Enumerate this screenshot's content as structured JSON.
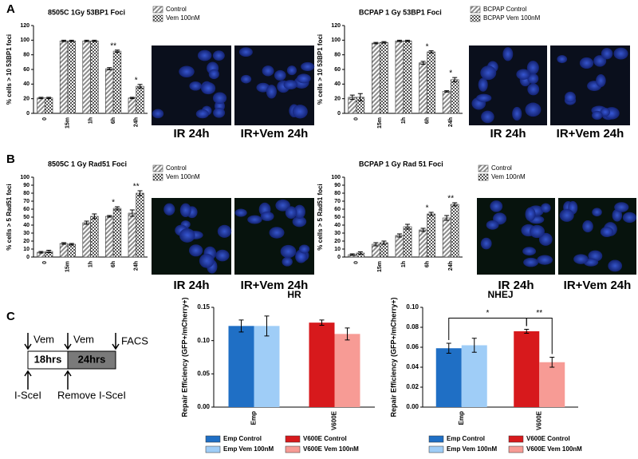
{
  "panel_letters": [
    "A",
    "B",
    "C"
  ],
  "image_captions": [
    "IR 24h",
    "IR+Vem 24h",
    "IR 24h",
    "IR+Vem 24h",
    "IR 24h",
    "IR+Vem 24h",
    "IR 24h",
    "IR+Vem 24h"
  ],
  "diagram": {
    "vem_1": "Vem",
    "vem_2": "Vem",
    "facs": "FACS",
    "phase_1": "18hrs",
    "phase_2": "24hrs",
    "start": "I-SceI",
    "remove": "Remove I-SceI"
  },
  "chart_data": [
    {
      "type": "bar",
      "title": "8505C 1Gy 53BP1 Foci",
      "y_label": "% cells > 10  53BP1 foci",
      "categories": [
        "0",
        "15m",
        "1h",
        "6h",
        "24h"
      ],
      "series": [
        {
          "name": "Control",
          "color": "#8c8c8c",
          "pattern": "stripes",
          "values": [
            21,
            99,
            99,
            61,
            21
          ],
          "errors": [
            1,
            1,
            1,
            1.5,
            1
          ]
        },
        {
          "name": "Vem 100nM",
          "color": "#555555",
          "pattern": "checks",
          "values": [
            21,
            99,
            99,
            85,
            37
          ],
          "errors": [
            1,
            1,
            1,
            1.5,
            2.5
          ]
        }
      ],
      "annotations": [
        null,
        null,
        null,
        "**",
        "*"
      ],
      "ylim": [
        0,
        120
      ],
      "yticks": [
        0,
        20,
        40,
        60,
        80,
        100,
        120
      ]
    },
    {
      "type": "bar",
      "title": "BCPAP 1 Gy 53BP1 Foci",
      "y_label": "% cells > 10  53BP1 foci",
      "categories": [
        "0",
        "15m",
        "1h",
        "6h",
        "24h"
      ],
      "series": [
        {
          "name": "BCPAP Control",
          "color": "#8c8c8c",
          "pattern": "stripes",
          "values": [
            22,
            96,
            99,
            69,
            30
          ],
          "errors": [
            3,
            1,
            1,
            2,
            1
          ]
        },
        {
          "name": "BCPAP Vem 100nM",
          "color": "#555555",
          "pattern": "checks",
          "values": [
            22,
            97,
            99,
            84,
            46
          ],
          "errors": [
            5,
            1,
            1,
            1.5,
            3
          ]
        }
      ],
      "annotations": [
        null,
        null,
        null,
        "*",
        "*"
      ],
      "ylim": [
        0,
        120
      ],
      "yticks": [
        0,
        20,
        40,
        60,
        80,
        100,
        120
      ]
    },
    {
      "type": "bar",
      "title": "8505C 1 Gy Rad51 Foci",
      "y_label": "% cells > 5 Rad51 foci",
      "categories": [
        "0",
        "15m",
        "1h",
        "6h",
        "24h"
      ],
      "series": [
        {
          "name": "Control",
          "color": "#8c8c8c",
          "pattern": "stripes",
          "values": [
            6,
            17,
            43,
            51,
            55
          ],
          "errors": [
            1,
            1,
            2,
            1,
            4
          ]
        },
        {
          "name": "Vem 100nM",
          "color": "#555555",
          "pattern": "checks",
          "values": [
            7,
            16,
            51,
            61,
            80
          ],
          "errors": [
            1.5,
            1,
            3,
            2,
            3
          ]
        }
      ],
      "annotations": [
        null,
        null,
        null,
        "*",
        "**"
      ],
      "ylim": [
        0,
        100
      ],
      "yticks": [
        0,
        10,
        20,
        30,
        40,
        50,
        60,
        70,
        80,
        90,
        100
      ]
    },
    {
      "type": "bar",
      "title": "BCPAP 1 Gy Rad 51 Foci",
      "y_label": "% cells > 5 Rad51 foci",
      "categories": [
        "0",
        "15m",
        "1h",
        "6h",
        "24h"
      ],
      "series": [
        {
          "name": "Control",
          "color": "#8c8c8c",
          "pattern": "stripes",
          "values": [
            3,
            16,
            27,
            34,
            49
          ],
          "errors": [
            1,
            2,
            2,
            2,
            3
          ]
        },
        {
          "name": "Vem 100nM",
          "color": "#555555",
          "pattern": "checks",
          "values": [
            5,
            18,
            38,
            54,
            66
          ],
          "errors": [
            1.5,
            2,
            3,
            2,
            2
          ]
        }
      ],
      "annotations": [
        null,
        null,
        null,
        "*",
        "**"
      ],
      "ylim": [
        0,
        100
      ],
      "yticks": [
        0,
        10,
        20,
        30,
        40,
        50,
        60,
        70,
        80,
        90,
        100
      ]
    },
    {
      "type": "bar",
      "title": "HR",
      "y_label": "Repair Efficiency (GFP+/mCherry+)",
      "categories": [
        "Emp",
        "V600E"
      ],
      "series": [
        {
          "name": "Emp Control",
          "color": "#1f6fc5",
          "values": [
            0.122,
            null
          ],
          "errors": [
            0.009,
            null
          ]
        },
        {
          "name": "Emp Vem 100nM",
          "color": "#9fcdf7",
          "values": [
            0.122,
            null
          ],
          "errors": [
            0.015,
            null
          ]
        },
        {
          "name": "V600E Control",
          "color": "#d7191c",
          "values": [
            null,
            0.127
          ],
          "errors": [
            null,
            0.004
          ]
        },
        {
          "name": "V600E Vem 100nM",
          "color": "#f79b95",
          "values": [
            null,
            0.11
          ],
          "errors": [
            null,
            0.009
          ]
        }
      ],
      "ylim": [
        0,
        0.15
      ],
      "yticks": [
        {
          "value": 0,
          "label": "0.00"
        },
        {
          "value": 0.05,
          "label": "0.05"
        },
        {
          "value": 0.1,
          "label": "0.10"
        },
        {
          "value": 0.15,
          "label": "0.15"
        }
      ]
    },
    {
      "type": "bar",
      "title": "NHEJ",
      "y_label": "Repair Efficiency (GFP+/mCherry+)",
      "categories": [
        "Emp",
        "V600E"
      ],
      "series": [
        {
          "name": "Emp Control",
          "color": "#1f6fc5",
          "values": [
            0.059,
            null
          ],
          "errors": [
            0.005,
            null
          ]
        },
        {
          "name": "Emp Vem 100nM",
          "color": "#9fcdf7",
          "values": [
            0.062,
            null
          ],
          "errors": [
            0.007,
            null
          ]
        },
        {
          "name": "V600E Control",
          "color": "#d7191c",
          "values": [
            null,
            0.076
          ],
          "errors": [
            null,
            0.002
          ]
        },
        {
          "name": "V600E Vem 100nM",
          "color": "#f79b95",
          "values": [
            null,
            0.045
          ],
          "errors": [
            null,
            0.005
          ]
        }
      ],
      "brackets": [
        {
          "text": "*",
          "from": "Emp Control",
          "to": "V600E Control"
        },
        {
          "text": "**",
          "from": "V600E Control",
          "to": "V600E Vem 100nM"
        }
      ],
      "ylim": [
        0,
        0.1
      ],
      "yticks": [
        {
          "value": 0,
          "label": "0.00"
        },
        {
          "value": 0.02,
          "label": "0.02"
        },
        {
          "value": 0.04,
          "label": "0.04"
        },
        {
          "value": 0.06,
          "label": "0.06"
        },
        {
          "value": 0.08,
          "label": "0.08"
        },
        {
          "value": 0.1,
          "label": "0.10"
        }
      ]
    }
  ]
}
